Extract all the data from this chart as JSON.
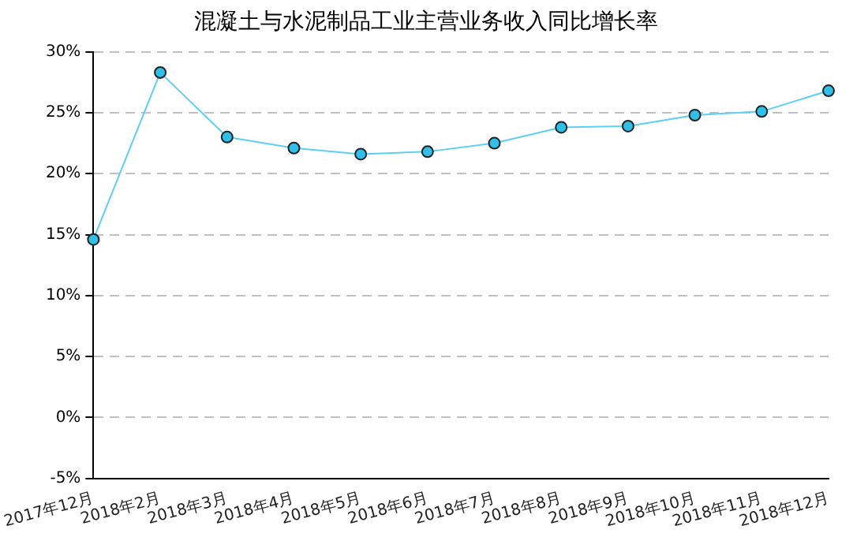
{
  "chart_data": {
    "type": "line",
    "title": "混凝土与水泥制品工业主营业务收入同比增长率",
    "categories": [
      "2017年12月",
      "2018年2月",
      "2018年3月",
      "2018年4月",
      "2018年5月",
      "2018年6月",
      "2018年7月",
      "2018年8月",
      "2018年9月",
      "2018年10月",
      "2018年11月",
      "2018年12月"
    ],
    "series": [
      {
        "color": "#5ccff5",
        "values": [
          14.6,
          28.3,
          23.0,
          22.1,
          21.6,
          21.8,
          22.5,
          23.8,
          23.9,
          24.8,
          25.1,
          26.8
        ]
      }
    ],
    "ylim": [
      -5,
      30
    ],
    "yticks": [
      {
        "value": -5,
        "label": "-5%"
      },
      {
        "value": 0,
        "label": "0%"
      },
      {
        "value": 5,
        "label": "5%"
      },
      {
        "value": 10,
        "label": "10%"
      },
      {
        "value": 15,
        "label": "15%"
      },
      {
        "value": 20,
        "label": "20%"
      },
      {
        "value": 25,
        "label": "25%"
      },
      {
        "value": 30,
        "label": "30%"
      }
    ],
    "grid": "y",
    "legend": false,
    "marker": "circle",
    "line_style": "solid"
  }
}
